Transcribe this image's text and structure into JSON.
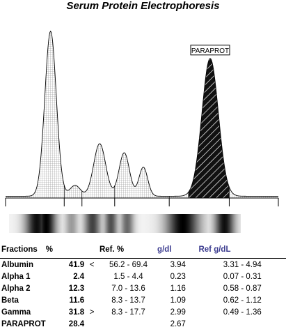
{
  "title": "Serum Protein Electrophoresis",
  "paraprotein_label": "PARAPROT",
  "colors": {
    "trace_fill": "#e9e9e9",
    "grid": "#9a9a9a",
    "paraprotein_fill": "#111111",
    "blue_header": "#3b3b8f"
  },
  "table": {
    "headers": {
      "fractions": "Fractions",
      "pct": "%",
      "ref_pct": "Ref. %",
      "gdl": "g/dl",
      "ref_gdl": "Ref g/dL"
    },
    "rows": [
      {
        "name": "Albumin",
        "pct": "41.9",
        "flag": "<",
        "ref_pct": "56.2 - 69.4",
        "gdl": "3.94",
        "ref_gdl": "3.31 - 4.94"
      },
      {
        "name": "Alpha 1",
        "pct": "2.4",
        "flag": "",
        "ref_pct": "1.5 -  4.4",
        "gdl": "0.23",
        "ref_gdl": "0.07 - 0.31"
      },
      {
        "name": "Alpha 2",
        "pct": "12.3",
        "flag": "",
        "ref_pct": "7.0 - 13.6",
        "gdl": "1.16",
        "ref_gdl": "0.58 - 0.87"
      },
      {
        "name": "Beta",
        "pct": "11.6",
        "flag": "",
        "ref_pct": "8.3 - 13.7",
        "gdl": "1.09",
        "ref_gdl": "0.62 - 1.12"
      },
      {
        "name": "Gamma",
        "pct": "31.8",
        "flag": ">",
        "ref_pct": "8.3 - 17.7",
        "gdl": "2.99",
        "ref_gdl": "0.49 - 1.36"
      },
      {
        "name": "PARAPROT",
        "pct": "28.4",
        "flag": "",
        "ref_pct": "",
        "gdl": "2.67",
        "ref_gdl": ""
      }
    ]
  },
  "chart_data": {
    "type": "area",
    "title": "Serum Protein Electrophoresis",
    "xlabel": "",
    "ylabel": "",
    "x_range": [
      0,
      100
    ],
    "y_range": [
      0,
      100
    ],
    "peaks": [
      {
        "name": "Albumin",
        "center": 16.5,
        "height": 91,
        "width": 2.1
      },
      {
        "name": "Alpha 1",
        "center": 25.5,
        "height": 6,
        "width": 1.9
      },
      {
        "name": "Alpha 2",
        "center": 34.5,
        "height": 29,
        "width": 2.2
      },
      {
        "name": "Beta 1",
        "center": 43.5,
        "height": 24,
        "width": 1.9
      },
      {
        "name": "Beta 2",
        "center": 50.5,
        "height": 16,
        "width": 1.6
      },
      {
        "name": "Gamma",
        "center": 75.0,
        "height": 76,
        "width": 3.0
      }
    ],
    "baseline": 1,
    "fraction_boundaries": [
      21.5,
      28,
      40,
      60,
      82
    ],
    "paraprotein_region": [
      67,
      82
    ],
    "gel_bands": [
      {
        "center": 12,
        "width": 7,
        "intensity": 0.9
      },
      {
        "center": 16,
        "width": 6,
        "intensity": 0.95
      },
      {
        "center": 27,
        "width": 4,
        "intensity": 0.35
      },
      {
        "center": 36,
        "width": 5,
        "intensity": 0.7
      },
      {
        "center": 44,
        "width": 4,
        "intensity": 0.65
      },
      {
        "center": 51,
        "width": 4,
        "intensity": 0.55
      },
      {
        "center": 75,
        "width": 10,
        "intensity": 0.95
      },
      {
        "center": 93,
        "width": 6,
        "intensity": 0.9
      }
    ]
  }
}
